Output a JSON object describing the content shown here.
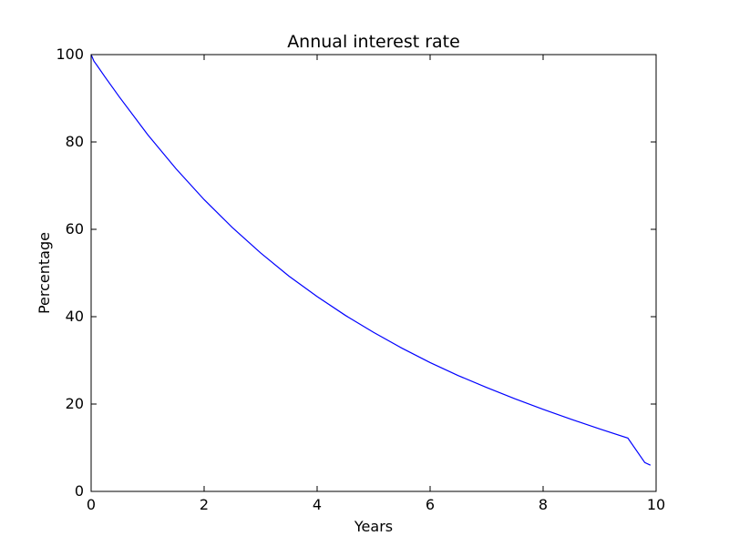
{
  "chart_data": {
    "type": "line",
    "title": "Annual interest rate",
    "xlabel": "Years",
    "ylabel": "Percentage",
    "xlim": [
      0,
      10
    ],
    "ylim": [
      0,
      100
    ],
    "xticks": [
      0,
      2,
      4,
      6,
      8,
      10
    ],
    "yticks": [
      0,
      20,
      40,
      60,
      80,
      100
    ],
    "xtick_labels": [
      "0",
      "2",
      "4",
      "6",
      "8",
      "10"
    ],
    "ytick_labels": [
      "0",
      "20",
      "40",
      "60",
      "80",
      "100"
    ],
    "grid": false,
    "series": [
      {
        "color": "#0000ff",
        "x": [
          0,
          0.05,
          0.1,
          0.25,
          0.5,
          1,
          1.5,
          2,
          2.5,
          3,
          3.5,
          4,
          4.5,
          5,
          5.5,
          6,
          6.5,
          7,
          7.5,
          8,
          8.5,
          9,
          9.5,
          9.8,
          9.9
        ],
        "y": [
          100,
          98.5,
          97.6,
          94.8,
          90.3,
          81.7,
          73.9,
          66.8,
          60.4,
          54.6,
          49.3,
          44.6,
          40.3,
          36.4,
          32.8,
          29.5,
          26.5,
          23.8,
          21.2,
          18.8,
          16.5,
          14.3,
          12.2,
          6.6,
          6.0
        ]
      }
    ]
  }
}
